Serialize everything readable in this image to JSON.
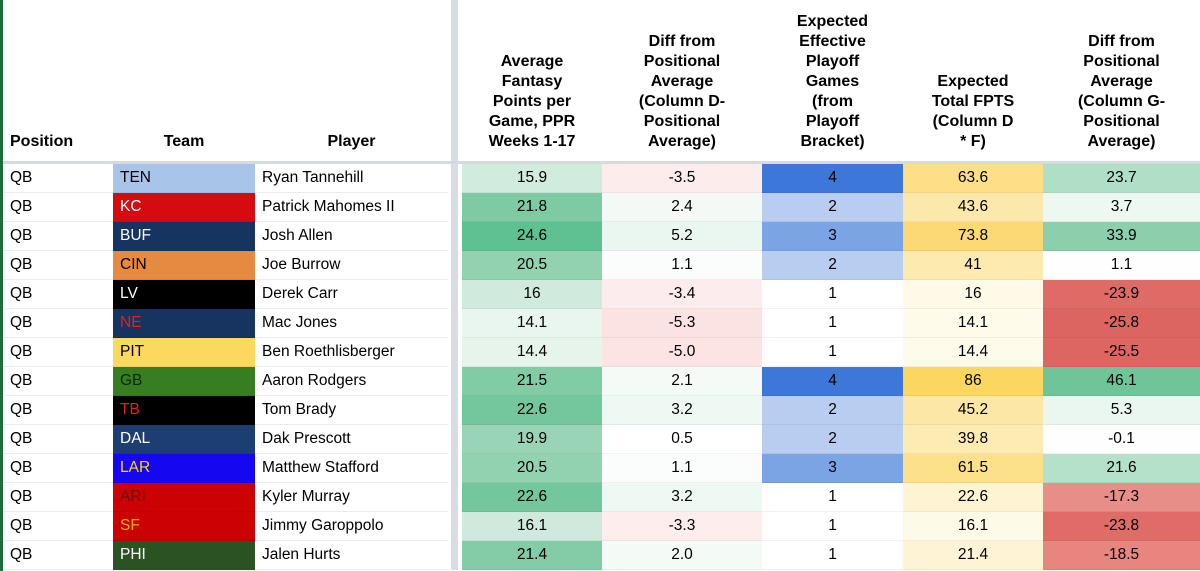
{
  "colors": {
    "accent_green": "#1e6b3c",
    "divider_gray": "#d6d9dd",
    "stripe_gray": "#d9dce1",
    "scale_green_max": "#57bb8a",
    "scale_blue_max": "#3d78d8",
    "scale_yellow_max": "#fbd75f",
    "scale_red_max": "#dd6561"
  },
  "header": {
    "columns": [
      {
        "key": "position",
        "label": "Position"
      },
      {
        "key": "team",
        "label": "Team"
      },
      {
        "key": "player",
        "label": "Player"
      },
      {
        "key": "avg",
        "label": "Average Fantasy Points per Game, PPR Weeks 1-17"
      },
      {
        "key": "diff_d",
        "label": "Diff from Positional Average (Column D-Positional Average)"
      },
      {
        "key": "games",
        "label": "Expected Effective Playoff Games (from Playoff Bracket)"
      },
      {
        "key": "total",
        "label": "Expected Total FPTS (Column D * F)"
      },
      {
        "key": "diff_g",
        "label": "Diff from Positional Average (Column G-Positional Average)"
      }
    ]
  },
  "rows": [
    {
      "position": "QB",
      "team": "TEN",
      "team_bg": "#a9c4e9",
      "team_fg": "#000000",
      "player": "Ryan Tannehill",
      "avg": "15.9",
      "avg_bg": "#d2ebdf",
      "diff_d": "-3.5",
      "diff_d_bg": "#fdecec",
      "games": "4",
      "games_bg": "#3d78d8",
      "total": "63.6",
      "total_bg": "#fcdf86",
      "diff_g": "23.7",
      "diff_g_bg": "#b0dfc7"
    },
    {
      "position": "QB",
      "team": "KC",
      "team_bg": "#d50b10",
      "team_fg": "#ffffff",
      "player": "Patrick Mahomes II",
      "avg": "21.8",
      "avg_bg": "#7ecaa3",
      "diff_d": "2.4",
      "diff_d_bg": "#f3faf6",
      "games": "2",
      "games_bg": "#b8cdf0",
      "total": "43.6",
      "total_bg": "#fce8aa",
      "diff_g": "3.7",
      "diff_g_bg": "#eef8f3"
    },
    {
      "position": "QB",
      "team": "BUF",
      "team_bg": "#17335f",
      "team_fg": "#ffffff",
      "player": "Josh Allen",
      "avg": "24.6",
      "avg_bg": "#5fc092",
      "diff_d": "5.2",
      "diff_d_bg": "#eaf7f0",
      "games": "3",
      "games_bg": "#7ba4e5",
      "total": "73.8",
      "total_bg": "#fcd974",
      "diff_g": "33.9",
      "diff_g_bg": "#8bcfad"
    },
    {
      "position": "QB",
      "team": "CIN",
      "team_bg": "#e78a41",
      "team_fg": "#000000",
      "player": "Joe Burrow",
      "avg": "20.5",
      "avg_bg": "#92d2b0",
      "diff_d": "1.1",
      "diff_d_bg": "#fbfdfc",
      "games": "2",
      "games_bg": "#b8cdf0",
      "total": "41",
      "total_bg": "#fdeaaf",
      "diff_g": "1.1",
      "diff_g_bg": "#fdfefd"
    },
    {
      "position": "QB",
      "team": "LV",
      "team_bg": "#000000",
      "team_fg": "#ffffff",
      "player": "Derek Carr",
      "avg": "16",
      "avg_bg": "#d0eadd",
      "diff_d": "-3.4",
      "diff_d_bg": "#fdeced",
      "games": "1",
      "games_bg": "#ffffff",
      "total": "16",
      "total_bg": "#fefae7",
      "diff_g": "-23.9",
      "diff_g_bg": "#df6b66"
    },
    {
      "position": "QB",
      "team": "NE",
      "team_bg": "#17335f",
      "team_fg": "#e0231c",
      "player": "Mac Jones",
      "avg": "14.1",
      "avg_bg": "#e9f5ef",
      "diff_d": "-5.3",
      "diff_d_bg": "#fce3e3",
      "games": "1",
      "games_bg": "#ffffff",
      "total": "14.1",
      "total_bg": "#fefbeb",
      "diff_g": "-25.8",
      "diff_g_bg": "#dd6560"
    },
    {
      "position": "QB",
      "team": "PIT",
      "team_bg": "#fbd95f",
      "team_fg": "#000000",
      "player": "Ben Roethlisberger",
      "avg": "14.4",
      "avg_bg": "#e6f4ec",
      "diff_d": "-5.0",
      "diff_d_bg": "#fce4e4",
      "games": "1",
      "games_bg": "#ffffff",
      "total": "14.4",
      "total_bg": "#fefbea",
      "diff_g": "-25.5",
      "diff_g_bg": "#dd6661"
    },
    {
      "position": "QB",
      "team": "GB",
      "team_bg": "#377d21",
      "team_fg": "#0d290a",
      "player": "Aaron Rodgers",
      "avg": "21.5",
      "avg_bg": "#81cba5",
      "diff_d": "2.1",
      "diff_d_bg": "#f4fbf7",
      "games": "4",
      "games_bg": "#3d78d8",
      "total": "86",
      "total_bg": "#fbd75f",
      "diff_g": "46.1",
      "diff_g_bg": "#6fc499"
    },
    {
      "position": "QB",
      "team": "TB",
      "team_bg": "#000000",
      "team_fg": "#e0231c",
      "player": "Tom Brady",
      "avg": "22.6",
      "avg_bg": "#74c69c",
      "diff_d": "3.2",
      "diff_d_bg": "#eff9f4",
      "games": "2",
      "games_bg": "#b8cdf0",
      "total": "45.2",
      "total_bg": "#fce7a7",
      "diff_g": "5.3",
      "diff_g_bg": "#eaf6f0"
    },
    {
      "position": "QB",
      "team": "DAL",
      "team_bg": "#1d3e70",
      "team_fg": "#ffffff",
      "player": "Dak Prescott",
      "avg": "19.9",
      "avg_bg": "#9ad4b6",
      "diff_d": "0.5",
      "diff_d_bg": "#fefffe",
      "games": "2",
      "games_bg": "#b8cdf0",
      "total": "39.8",
      "total_bg": "#fdebb2",
      "diff_g": "-0.1",
      "diff_g_bg": "#fefefe"
    },
    {
      "position": "QB",
      "team": "LAR",
      "team_bg": "#1507f0",
      "team_fg": "#ffd900",
      "player": "Matthew Stafford",
      "avg": "20.5",
      "avg_bg": "#92d2b0",
      "diff_d": "1.1",
      "diff_d_bg": "#fbfdfc",
      "games": "3",
      "games_bg": "#7ba4e5",
      "total": "61.5",
      "total_bg": "#fce08a",
      "diff_g": "21.6",
      "diff_g_bg": "#b5e1cb"
    },
    {
      "position": "QB",
      "team": "ARI",
      "team_bg": "#cb0103",
      "team_fg": "#6f1010",
      "player": "Kyler Murray",
      "avg": "22.6",
      "avg_bg": "#74c69c",
      "diff_d": "3.2",
      "diff_d_bg": "#eff9f4",
      "games": "1",
      "games_bg": "#ffffff",
      "total": "22.6",
      "total_bg": "#fef3d3",
      "diff_g": "-17.3",
      "diff_g_bg": "#e78e88"
    },
    {
      "position": "QB",
      "team": "SF",
      "team_bg": "#cb0103",
      "team_fg": "#eead07",
      "player": "Jimmy Garoppolo",
      "avg": "16.1",
      "avg_bg": "#cfeadc",
      "diff_d": "-3.3",
      "diff_d_bg": "#fdeded",
      "games": "1",
      "games_bg": "#ffffff",
      "total": "16.1",
      "total_bg": "#fefae8",
      "diff_g": "-23.8",
      "diff_g_bg": "#df6c67"
    },
    {
      "position": "QB",
      "team": "PHI",
      "team_bg": "#2b5222",
      "team_fg": "#ffffff",
      "player": "Jalen Hurts",
      "avg": "21.4",
      "avg_bg": "#83cca7",
      "diff_d": "2.0",
      "diff_d_bg": "#f4fbf7",
      "games": "1",
      "games_bg": "#ffffff",
      "total": "21.4",
      "total_bg": "#fef4d5",
      "diff_g": "-18.5",
      "diff_g_bg": "#e6867f"
    }
  ]
}
